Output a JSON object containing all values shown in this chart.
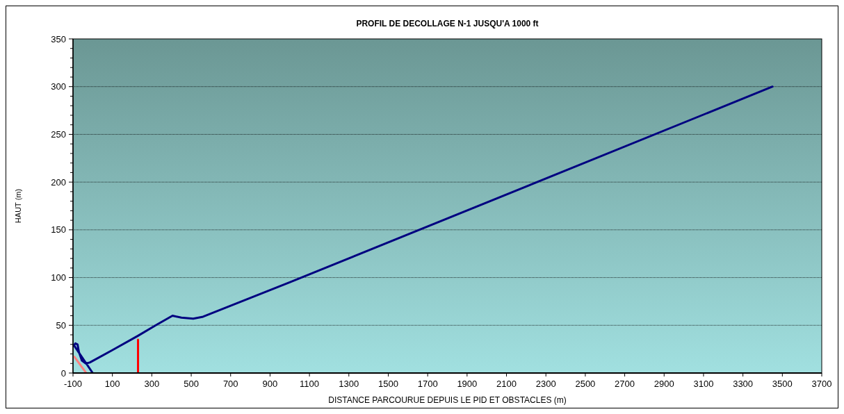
{
  "chart_data": {
    "type": "line",
    "title": "PROFIL DE DECOLLAGE N-1 JUSQU'A 1000 ft",
    "xlabel": "DISTANCE PARCOURUE DEPUIS LE PID ET OBSTACLES (m)",
    "ylabel": "HAUT (m)",
    "xlim": [
      -100,
      3700
    ],
    "xticks": [
      -100,
      100,
      300,
      500,
      700,
      900,
      1100,
      1300,
      1500,
      1700,
      1900,
      2100,
      2300,
      2500,
      2700,
      2900,
      3100,
      3300,
      3500,
      3700
    ],
    "ylim": [
      0,
      350
    ],
    "yticks": [
      0,
      {
        "value": 10,
        "label": null
      },
      {
        "value": 20,
        "label": null
      },
      {
        "value": 30,
        "label": null
      },
      {
        "value": 40,
        "label": null
      },
      50,
      {
        "value": 60,
        "label": null
      },
      {
        "value": 70,
        "label": null
      },
      {
        "value": 80,
        "label": null
      },
      {
        "value": 90,
        "label": null
      },
      100,
      {
        "value": 110,
        "label": null
      },
      {
        "value": 120,
        "label": null
      },
      {
        "value": 130,
        "label": null
      },
      {
        "value": 140,
        "label": null
      },
      150,
      {
        "value": 160,
        "label": null
      },
      {
        "value": 170,
        "label": null
      },
      {
        "value": 180,
        "label": null
      },
      {
        "value": 190,
        "label": null
      },
      200,
      {
        "value": 210,
        "label": null
      },
      {
        "value": 220,
        "label": null
      },
      {
        "value": 230,
        "label": null
      },
      {
        "value": 240,
        "label": null
      },
      250,
      {
        "value": 260,
        "label": null
      },
      {
        "value": 270,
        "label": null
      },
      {
        "value": 280,
        "label": null
      },
      {
        "value": 290,
        "label": null
      },
      300,
      {
        "value": 310,
        "label": null
      },
      {
        "value": 320,
        "label": null
      },
      {
        "value": 330,
        "label": null
      },
      {
        "value": 340,
        "label": null
      },
      350
    ],
    "grid": "y",
    "marker": "none",
    "line_style": "solid",
    "series": [
      {
        "color": "#000080",
        "x": [
          0,
          -95,
          -88,
          -77,
          -70,
          -55,
          -35,
          -15,
          100,
          230,
          320,
          405,
          450,
          510,
          560,
          1000,
          3450
        ],
        "values": [
          0,
          29,
          31,
          30,
          22,
          13,
          10,
          11,
          24,
          39,
          50,
          60,
          58,
          57,
          59,
          95,
          300
        ]
      },
      {
        "color": "#ff0000",
        "x": [
          230,
          230
        ],
        "values": [
          0,
          35
        ]
      },
      {
        "color": "#ff8080",
        "x": [
          -93,
          -33
        ],
        "values": [
          17,
          0
        ]
      }
    ]
  }
}
